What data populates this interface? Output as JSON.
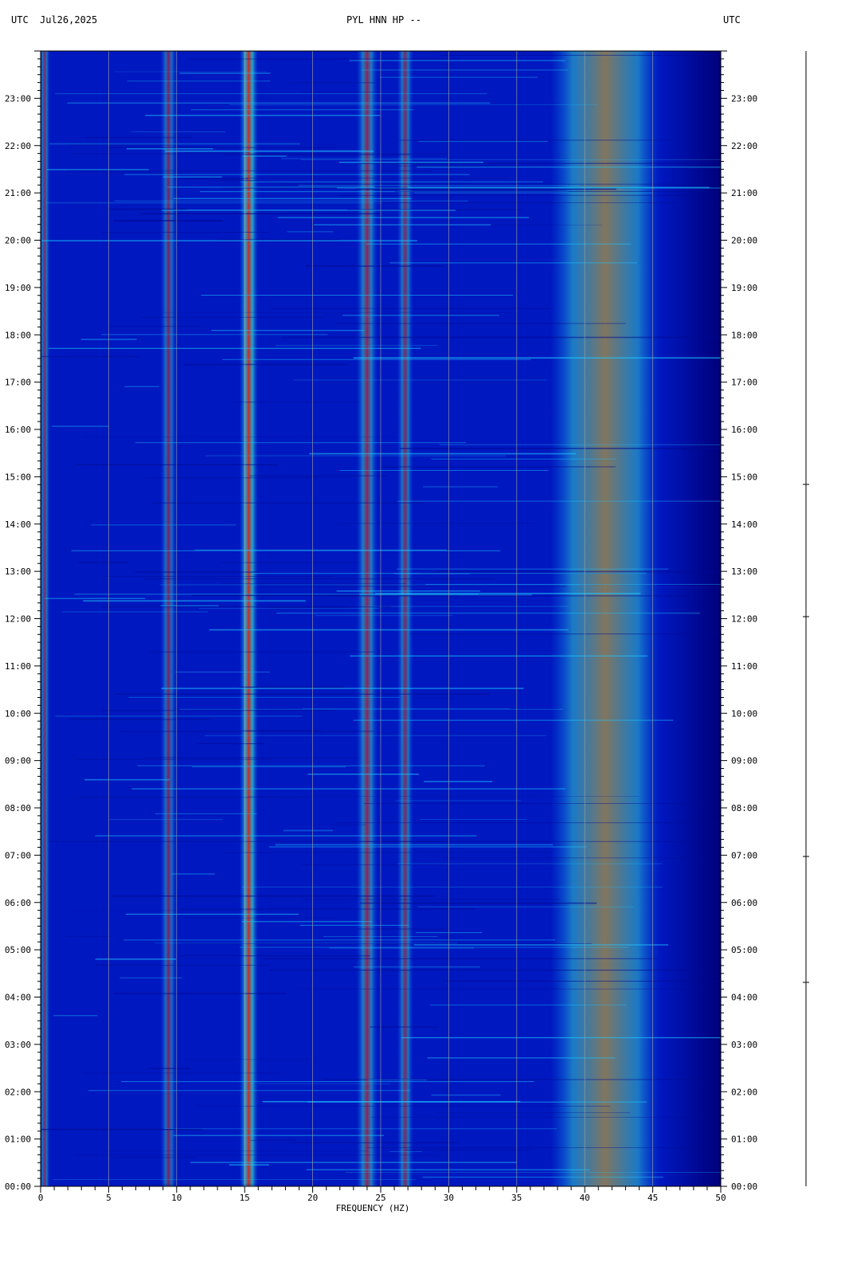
{
  "header": {
    "left_tz": "UTC",
    "date": "Jul26,2025",
    "title": "PYL HNN HP --",
    "right_tz": "UTC"
  },
  "chart_data": {
    "type": "heatmap",
    "title": "PYL HNN HP --",
    "xlabel": "FREQUENCY (HZ)",
    "ylabel": "",
    "xlim": [
      0,
      50
    ],
    "x_major_ticks": [
      0,
      5,
      10,
      15,
      20,
      25,
      30,
      35,
      40,
      45,
      50
    ],
    "x_tick_labels": [
      "0",
      "5",
      "10",
      "15",
      "20",
      "25",
      "30",
      "35",
      "40",
      "45",
      "50"
    ],
    "ylim_hours": [
      0,
      24
    ],
    "y_tick_hours": [
      0,
      1,
      2,
      3,
      4,
      5,
      6,
      7,
      8,
      9,
      10,
      11,
      12,
      13,
      14,
      15,
      16,
      17,
      18,
      19,
      20,
      21,
      22,
      23
    ],
    "y_tick_labels": [
      "00:00",
      "01:00",
      "02:00",
      "03:00",
      "04:00",
      "05:00",
      "06:00",
      "07:00",
      "08:00",
      "09:00",
      "10:00",
      "11:00",
      "12:00",
      "13:00",
      "14:00",
      "15:00",
      "16:00",
      "17:00",
      "18:00",
      "19:00",
      "20:00",
      "21:00",
      "22:00",
      "23:00"
    ],
    "grid_x": true,
    "colormap": [
      "#00007a",
      "#0010d0",
      "#0050ff",
      "#00b0ff",
      "#40ffd0",
      "#c8ff40",
      "#ffd000",
      "#ff5000",
      "#c00000"
    ],
    "background_color": "#0018c0",
    "features": [
      {
        "name": "low-frequency band",
        "freq_hz": 0.3,
        "width_hz": 0.4,
        "intensity": 0.55
      },
      {
        "name": "band",
        "freq_hz": 9.4,
        "width_hz": 0.6,
        "intensity": 0.5
      },
      {
        "name": "band",
        "freq_hz": 15.3,
        "width_hz": 0.7,
        "intensity": 0.85
      },
      {
        "name": "band",
        "freq_hz": 24.0,
        "width_hz": 0.8,
        "intensity": 0.6
      },
      {
        "name": "band",
        "freq_hz": 26.8,
        "width_hz": 0.6,
        "intensity": 0.55
      },
      {
        "name": "broad band",
        "freq_hz": 41.5,
        "width_hz": 4.0,
        "intensity": 0.6
      }
    ]
  }
}
